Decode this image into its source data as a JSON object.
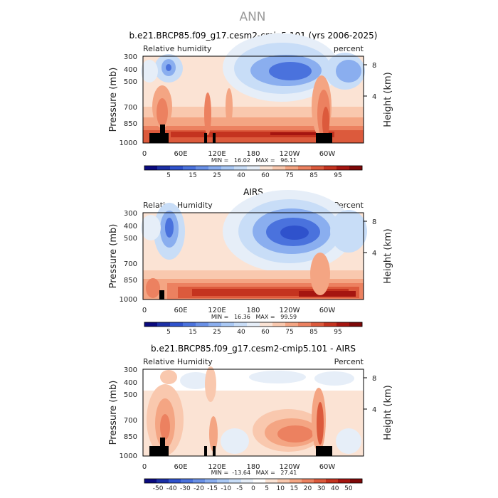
{
  "page_title": "ANN",
  "colors": {
    "positive_scale": [
      "#0a0a7e",
      "#1b2fa5",
      "#2f52cc",
      "#4a72dd",
      "#6990e6",
      "#8aaeef",
      "#aac9f5",
      "#c8ddf7",
      "#e6eef8",
      "#fbe3d4",
      "#f9c8ae",
      "#f4a583",
      "#ec8160",
      "#dc5a3c",
      "#c4331f",
      "#a51510",
      "#7e0808"
    ],
    "diff_scale": [
      "#0a0a7e",
      "#1b2fa5",
      "#2f52cc",
      "#4a72dd",
      "#6990e6",
      "#8aaeef",
      "#aac9f5",
      "#c8ddf7",
      "#e6eef8",
      "#ffffff",
      "#fbe3d4",
      "#f9c8ae",
      "#f4a583",
      "#ec8160",
      "#dc5a3c",
      "#c4331f",
      "#a51510",
      "#7e0808"
    ],
    "terrain": "#000000"
  },
  "chart_data": [
    {
      "type": "heatmap",
      "title": "b.e21.BRCP85.f09_g17.cesm2-cmip5.101 (yrs 2006-2025)",
      "variable_label": "Relative humidity",
      "units_label": "percent",
      "ylabel": "Pressure (mb)",
      "y2label": "Height (km)",
      "yticks": [
        "300",
        "400",
        "500",
        "700",
        "850",
        "1000"
      ],
      "y2ticks": [
        "8",
        "4"
      ],
      "xticks": [
        "0",
        "60E",
        "120E",
        "180",
        "120W",
        "60W"
      ],
      "min_max_text": "MIN =   16.02   MAX =   96.11",
      "colorbar_labels": [
        "5",
        "15",
        "25",
        "40",
        "60",
        "75",
        "85",
        "95"
      ],
      "scale": "positive"
    },
    {
      "type": "heatmap",
      "title": "AIRS",
      "variable_label": "Relative Humidity",
      "units_label": "Percent",
      "ylabel": "Pressure (mb)",
      "y2label": "Height (km)",
      "yticks": [
        "300",
        "400",
        "500",
        "700",
        "850",
        "1000"
      ],
      "y2ticks": [
        "8",
        "4"
      ],
      "xticks": [
        "0",
        "60E",
        "120E",
        "180",
        "120W",
        "60W"
      ],
      "min_max_text": "MIN =   16.36   MAX =   99.59",
      "colorbar_labels": [
        "5",
        "15",
        "25",
        "40",
        "60",
        "75",
        "85",
        "95"
      ],
      "scale": "positive"
    },
    {
      "type": "heatmap",
      "title": "b.e21.BRCP85.f09_g17.cesm2-cmip5.101 - AIRS",
      "variable_label": "Relative Humidity",
      "units_label": "Percent",
      "ylabel": "Pressure (mb)",
      "y2label": "Height (km)",
      "yticks": [
        "300",
        "400",
        "500",
        "700",
        "850",
        "1000"
      ],
      "y2ticks": [
        "8",
        "4"
      ],
      "xticks": [
        "0",
        "60E",
        "120E",
        "180",
        "120W",
        "60W"
      ],
      "min_max_text": "MIN =  -13.64   MAX =   27.41",
      "colorbar_labels": [
        "-50",
        "-40",
        "-30",
        "-20",
        "-15",
        "-10",
        "-5",
        "0",
        "5",
        "10",
        "15",
        "20",
        "30",
        "40",
        "50"
      ],
      "scale": "diff"
    }
  ]
}
